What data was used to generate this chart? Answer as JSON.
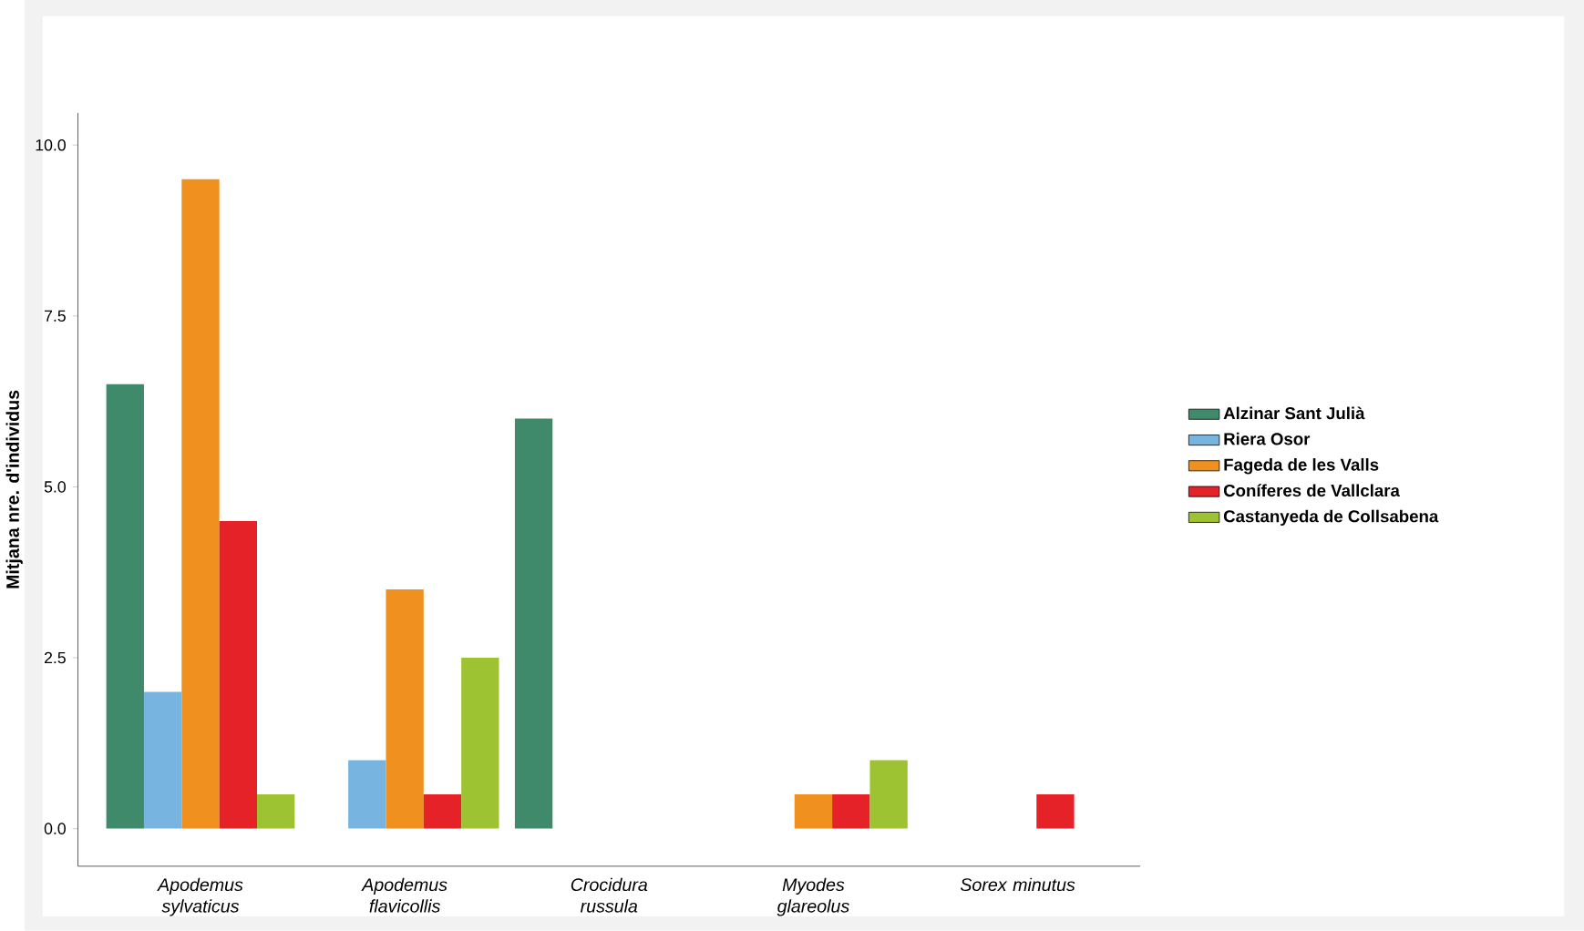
{
  "chart_data": {
    "type": "bar",
    "ylabel": "Mitjana nre. d'individus",
    "categories": [
      "Apodemus sylvaticus",
      "Apodemus flavicollis",
      "Crocidura russula",
      "Myodes glareolus",
      "Sorex minutus"
    ],
    "series": [
      {
        "name": "Alzinar Sant Julià",
        "color": "#3f8a6b",
        "values": [
          6.5,
          0,
          6.0,
          0,
          0
        ]
      },
      {
        "name": "Riera Osor",
        "color": "#77b5e0",
        "values": [
          2.0,
          1.0,
          0,
          0,
          0
        ]
      },
      {
        "name": "Fageda de les Valls",
        "color": "#f0901f",
        "values": [
          9.5,
          3.5,
          0,
          0.5,
          0
        ]
      },
      {
        "name": "Coníferes de Vallclara",
        "color": "#e42228",
        "values": [
          4.5,
          0.5,
          0,
          0.5,
          0.5
        ]
      },
      {
        "name": "Castanyeda de Collsabena",
        "color": "#9dc232",
        "values": [
          0.5,
          2.5,
          0,
          1.0,
          0
        ]
      }
    ],
    "ylim": [
      -0.55,
      10.47
    ],
    "yticks": [
      {
        "value": 0,
        "label": "0.0"
      },
      {
        "value": 2.5,
        "label": "2.5"
      },
      {
        "value": 5,
        "label": "5.0"
      },
      {
        "value": 7.5,
        "label": "7.5"
      },
      {
        "value": 10,
        "label": "10.0"
      }
    ],
    "grid": false,
    "legend": "right"
  }
}
